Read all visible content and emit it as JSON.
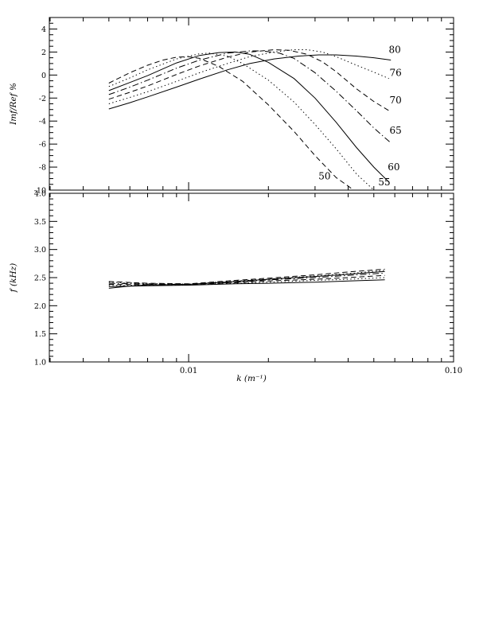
{
  "figure": {
    "background": "#ffffff",
    "line_color": "#000000",
    "xlabel": "k (m⁻¹)",
    "xtick_labels": [
      "0.01",
      "0.10"
    ]
  },
  "chart_data": [
    {
      "type": "line",
      "title": "",
      "ylabel": "Imf/Ref %",
      "xlabel": "",
      "xscale": "log",
      "xlim": [
        0.00298,
        0.1
      ],
      "ylim": [
        -10,
        5
      ],
      "grid": false,
      "legend_position": "right-inline-labels",
      "xticks_major": [
        0.01,
        0.1
      ],
      "xtick_labels": [
        "",
        ""
      ],
      "xticks_minor": [
        0.003,
        0.004,
        0.005,
        0.006,
        0.007,
        0.008,
        0.009,
        0.02,
        0.03,
        0.04,
        0.05,
        0.06,
        0.07,
        0.08,
        0.09
      ],
      "yticks_major": [
        4,
        2,
        0,
        -2,
        -4,
        -6,
        -8,
        -10
      ],
      "ytick_labels": [
        "4",
        "2",
        "0",
        "-2",
        "-4",
        "-6",
        "-8",
        "-10"
      ],
      "ytick_minor_step": 0.5,
      "series": [
        {
          "name": "50",
          "linestyle": "dashed",
          "label_at": [
            0.0326,
            -8.8
          ],
          "points": [
            [
              0.005,
              -0.7
            ],
            [
              0.006,
              0.2
            ],
            [
              0.007,
              0.85
            ],
            [
              0.008,
              1.3
            ],
            [
              0.009,
              1.55
            ],
            [
              0.01,
              1.6
            ],
            [
              0.011,
              1.45
            ],
            [
              0.013,
              0.75
            ],
            [
              0.016,
              -0.55
            ],
            [
              0.02,
              -2.6
            ],
            [
              0.025,
              -4.9
            ],
            [
              0.03,
              -7.0
            ],
            [
              0.036,
              -8.9
            ],
            [
              0.042,
              -10.0
            ]
          ]
        },
        {
          "name": "55",
          "linestyle": "dotted",
          "label_at": [
            0.0548,
            -9.3
          ],
          "points": [
            [
              0.005,
              -1.0
            ],
            [
              0.006,
              -0.25
            ],
            [
              0.007,
              0.45
            ],
            [
              0.009,
              1.4
            ],
            [
              0.011,
              1.85
            ],
            [
              0.012,
              1.9
            ],
            [
              0.014,
              1.65
            ],
            [
              0.016,
              1.0
            ],
            [
              0.02,
              -0.45
            ],
            [
              0.025,
              -2.35
            ],
            [
              0.03,
              -4.3
            ],
            [
              0.036,
              -6.4
            ],
            [
              0.043,
              -8.6
            ],
            [
              0.05,
              -10.0
            ]
          ]
        },
        {
          "name": "60",
          "linestyle": "solid",
          "label_at": [
            0.0595,
            -8.0
          ],
          "points": [
            [
              0.005,
              -1.35
            ],
            [
              0.006,
              -0.65
            ],
            [
              0.007,
              -0.05
            ],
            [
              0.009,
              1.05
            ],
            [
              0.011,
              1.7
            ],
            [
              0.013,
              1.95
            ],
            [
              0.015,
              2.0
            ],
            [
              0.017,
              1.8
            ],
            [
              0.02,
              1.1
            ],
            [
              0.025,
              -0.3
            ],
            [
              0.03,
              -2.0
            ],
            [
              0.036,
              -4.1
            ],
            [
              0.043,
              -6.3
            ],
            [
              0.05,
              -8.0
            ],
            [
              0.057,
              -9.3
            ]
          ]
        },
        {
          "name": "65",
          "linestyle": "dashdot",
          "label_at": [
            0.0604,
            -4.8
          ],
          "points": [
            [
              0.005,
              -1.7
            ],
            [
              0.006,
              -1.05
            ],
            [
              0.007,
              -0.45
            ],
            [
              0.009,
              0.6
            ],
            [
              0.011,
              1.3
            ],
            [
              0.014,
              1.9
            ],
            [
              0.017,
              2.1
            ],
            [
              0.019,
              2.1
            ],
            [
              0.022,
              1.9
            ],
            [
              0.025,
              1.45
            ],
            [
              0.03,
              0.2
            ],
            [
              0.036,
              -1.4
            ],
            [
              0.043,
              -3.1
            ],
            [
              0.05,
              -4.6
            ],
            [
              0.058,
              -5.9
            ]
          ]
        },
        {
          "name": "70",
          "linestyle": "dashed",
          "label_at": [
            0.0604,
            -2.2
          ],
          "points": [
            [
              0.005,
              -2.1
            ],
            [
              0.006,
              -1.5
            ],
            [
              0.007,
              -0.95
            ],
            [
              0.009,
              0.05
            ],
            [
              0.011,
              0.8
            ],
            [
              0.014,
              1.55
            ],
            [
              0.017,
              2.0
            ],
            [
              0.021,
              2.2
            ],
            [
              0.024,
              2.15
            ],
            [
              0.028,
              1.8
            ],
            [
              0.032,
              1.15
            ],
            [
              0.036,
              0.3
            ],
            [
              0.043,
              -1.2
            ],
            [
              0.05,
              -2.3
            ],
            [
              0.058,
              -3.2
            ]
          ]
        },
        {
          "name": "76",
          "linestyle": "dotted",
          "label_at": [
            0.0604,
            0.2
          ],
          "points": [
            [
              0.005,
              -2.5
            ],
            [
              0.006,
              -1.95
            ],
            [
              0.007,
              -1.45
            ],
            [
              0.009,
              -0.55
            ],
            [
              0.011,
              0.2
            ],
            [
              0.014,
              1.0
            ],
            [
              0.017,
              1.6
            ],
            [
              0.021,
              2.0
            ],
            [
              0.025,
              2.2
            ],
            [
              0.028,
              2.2
            ],
            [
              0.032,
              2.0
            ],
            [
              0.036,
              1.6
            ],
            [
              0.043,
              0.85
            ],
            [
              0.05,
              0.25
            ],
            [
              0.057,
              -0.3
            ]
          ]
        },
        {
          "name": "80",
          "linestyle": "solid",
          "label_at": [
            0.06,
            2.2
          ],
          "points": [
            [
              0.005,
              -2.95
            ],
            [
              0.006,
              -2.4
            ],
            [
              0.007,
              -1.9
            ],
            [
              0.009,
              -1.05
            ],
            [
              0.011,
              -0.35
            ],
            [
              0.014,
              0.45
            ],
            [
              0.017,
              1.0
            ],
            [
              0.021,
              1.4
            ],
            [
              0.026,
              1.65
            ],
            [
              0.031,
              1.75
            ],
            [
              0.036,
              1.75
            ],
            [
              0.043,
              1.65
            ],
            [
              0.05,
              1.5
            ],
            [
              0.058,
              1.3
            ]
          ]
        }
      ]
    },
    {
      "type": "line",
      "title": "",
      "ylabel": "f (kHz)",
      "xlabel": "k (m⁻¹)",
      "xscale": "log",
      "xlim": [
        0.00298,
        0.1
      ],
      "ylim": [
        1.0,
        4.0
      ],
      "grid": false,
      "xticks_major": [
        0.01,
        0.1
      ],
      "xtick_labels": [
        "0.01",
        "0.10"
      ],
      "xticks_minor": [
        0.003,
        0.004,
        0.005,
        0.006,
        0.007,
        0.008,
        0.009,
        0.02,
        0.03,
        0.04,
        0.05,
        0.06,
        0.07,
        0.08,
        0.09
      ],
      "yticks_major": [
        4.0,
        3.5,
        3.0,
        2.5,
        2.0,
        1.5,
        1.0
      ],
      "ytick_labels": [
        "4.0",
        "3.5",
        "3.0",
        "2.5",
        "2.0",
        "1.5",
        "1.0"
      ],
      "ytick_minor_step": 0.1,
      "series": [
        {
          "name": "50",
          "linestyle": "dashed",
          "points": [
            [
              0.005,
              2.43
            ],
            [
              0.007,
              2.4
            ],
            [
              0.01,
              2.39
            ],
            [
              0.015,
              2.45
            ],
            [
              0.02,
              2.49
            ],
            [
              0.03,
              2.55
            ],
            [
              0.04,
              2.6
            ],
            [
              0.055,
              2.65
            ]
          ]
        },
        {
          "name": "55",
          "linestyle": "dotted",
          "points": [
            [
              0.005,
              2.42
            ],
            [
              0.007,
              2.395
            ],
            [
              0.01,
              2.385
            ],
            [
              0.015,
              2.44
            ],
            [
              0.02,
              2.475
            ],
            [
              0.03,
              2.53
            ],
            [
              0.04,
              2.57
            ],
            [
              0.055,
              2.63
            ]
          ]
        },
        {
          "name": "60",
          "linestyle": "solid",
          "points": [
            [
              0.005,
              2.31
            ],
            [
              0.006,
              2.35
            ],
            [
              0.007,
              2.37
            ],
            [
              0.01,
              2.38
            ],
            [
              0.015,
              2.43
            ],
            [
              0.02,
              2.47
            ],
            [
              0.03,
              2.52
            ],
            [
              0.04,
              2.56
            ],
            [
              0.055,
              2.61
            ]
          ]
        },
        {
          "name": "65",
          "linestyle": "dashdot",
          "points": [
            [
              0.005,
              2.4
            ],
            [
              0.007,
              2.385
            ],
            [
              0.01,
              2.38
            ],
            [
              0.015,
              2.42
            ],
            [
              0.02,
              2.46
            ],
            [
              0.03,
              2.5
            ],
            [
              0.04,
              2.54
            ],
            [
              0.055,
              2.58
            ]
          ]
        },
        {
          "name": "70",
          "linestyle": "dashed",
          "points": [
            [
              0.005,
              2.38
            ],
            [
              0.007,
              2.375
            ],
            [
              0.01,
              2.375
            ],
            [
              0.015,
              2.41
            ],
            [
              0.02,
              2.44
            ],
            [
              0.03,
              2.47
            ],
            [
              0.04,
              2.5
            ],
            [
              0.055,
              2.54
            ]
          ]
        },
        {
          "name": "76",
          "linestyle": "dotted",
          "points": [
            [
              0.005,
              2.36
            ],
            [
              0.007,
              2.365
            ],
            [
              0.01,
              2.37
            ],
            [
              0.015,
              2.4
            ],
            [
              0.02,
              2.42
            ],
            [
              0.03,
              2.45
            ],
            [
              0.04,
              2.47
            ],
            [
              0.055,
              2.5
            ]
          ]
        },
        {
          "name": "80",
          "linestyle": "solid",
          "points": [
            [
              0.005,
              2.34
            ],
            [
              0.007,
              2.355
            ],
            [
              0.01,
              2.365
            ],
            [
              0.015,
              2.39
            ],
            [
              0.02,
              2.4
            ],
            [
              0.03,
              2.42
            ],
            [
              0.04,
              2.44
            ],
            [
              0.055,
              2.46
            ]
          ]
        }
      ]
    }
  ]
}
